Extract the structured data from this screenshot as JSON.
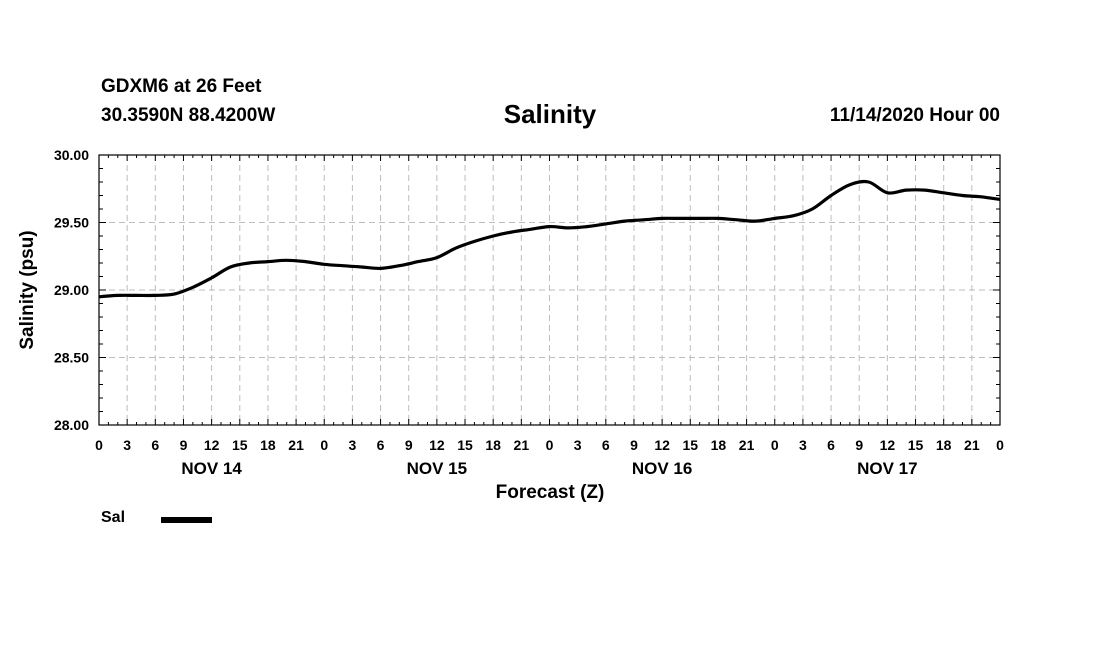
{
  "header": {
    "station": "GDXM6 at 26 Feet",
    "coords": "30.3590N 88.4200W",
    "datetime": "11/14/2020 Hour 00"
  },
  "legend": {
    "label": "Sal",
    "color": "#000000"
  },
  "chart_data": {
    "type": "line",
    "title": "Salinity",
    "xlabel": "Forecast (Z)",
    "ylabel": "Salinity (psu)",
    "ylim": [
      28.0,
      30.0
    ],
    "xlim": [
      0,
      96
    ],
    "yticks": [
      "28.00",
      "28.50",
      "29.00",
      "29.50",
      "30.00"
    ],
    "ytick_values": [
      28.0,
      28.5,
      29.0,
      29.5,
      30.0
    ],
    "xtick_labels": [
      "0",
      "3",
      "6",
      "9",
      "12",
      "15",
      "18",
      "21",
      "0",
      "3",
      "6",
      "9",
      "12",
      "15",
      "18",
      "21",
      "0",
      "3",
      "6",
      "9",
      "12",
      "15",
      "18",
      "21",
      "0",
      "3",
      "6",
      "9",
      "12",
      "15",
      "18",
      "21",
      "0"
    ],
    "day_labels": [
      {
        "label": "NOV 14",
        "hour": 12
      },
      {
        "label": "NOV 15",
        "hour": 36
      },
      {
        "label": "NOV 16",
        "hour": 60
      },
      {
        "label": "NOV 17",
        "hour": 84
      }
    ],
    "grid": true,
    "series": [
      {
        "name": "Sal",
        "x": [
          0,
          2,
          4,
          6,
          8,
          10,
          12,
          14,
          16,
          18,
          20,
          22,
          24,
          26,
          28,
          30,
          32,
          34,
          36,
          38,
          40,
          42,
          44,
          46,
          48,
          50,
          52,
          54,
          56,
          58,
          60,
          62,
          64,
          66,
          68,
          70,
          72,
          74,
          76,
          78,
          80,
          82,
          84,
          86,
          88,
          90,
          92,
          94,
          96
        ],
        "values": [
          28.95,
          28.96,
          28.96,
          28.96,
          28.97,
          29.02,
          29.09,
          29.17,
          29.2,
          29.21,
          29.22,
          29.21,
          29.19,
          29.18,
          29.17,
          29.16,
          29.18,
          29.21,
          29.24,
          29.31,
          29.36,
          29.4,
          29.43,
          29.45,
          29.47,
          29.46,
          29.47,
          29.49,
          29.51,
          29.52,
          29.53,
          29.53,
          29.53,
          29.53,
          29.52,
          29.51,
          29.53,
          29.55,
          29.6,
          29.7,
          29.78,
          29.8,
          29.72,
          29.74,
          29.74,
          29.72,
          29.7,
          29.69,
          29.67
        ]
      }
    ]
  }
}
